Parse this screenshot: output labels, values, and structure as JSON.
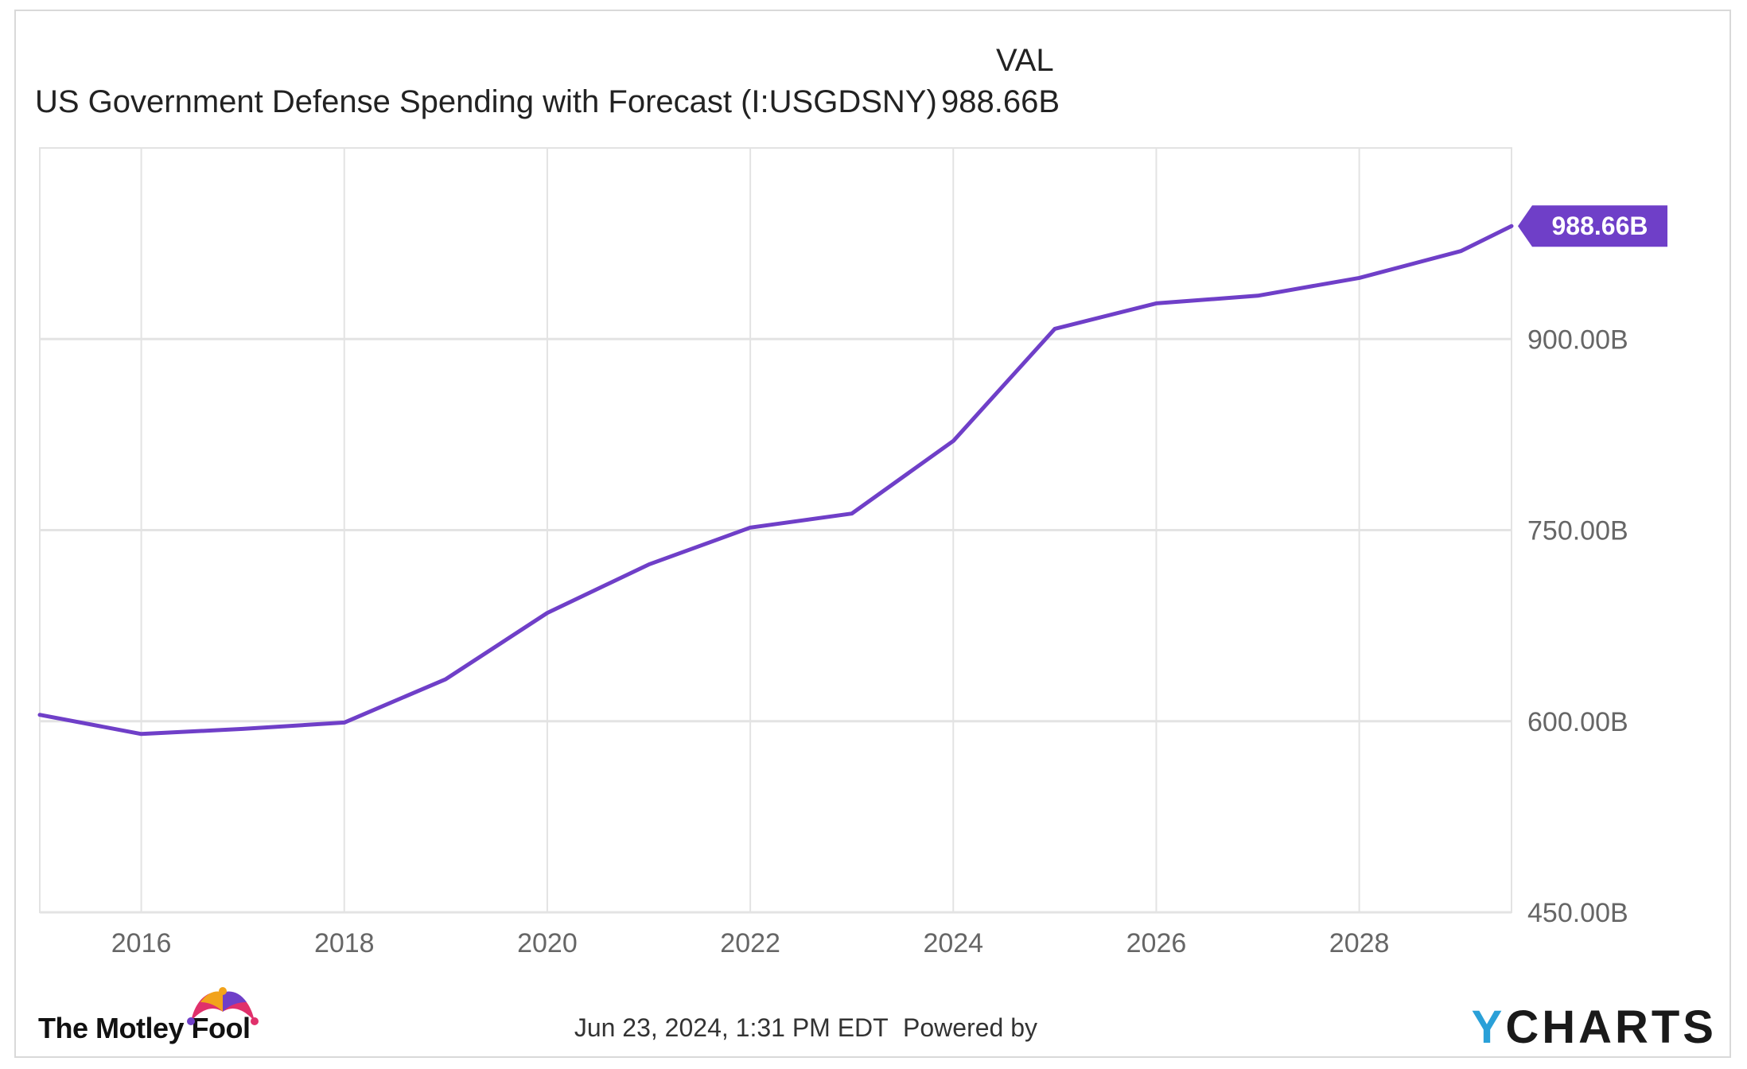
{
  "legend": {
    "header": "VAL",
    "series_name": "US Government Defense Spending with Forecast (I:USGDSNY)",
    "series_value": "988.66B"
  },
  "footer": {
    "timestamp": "Jun 23, 2024, 1:31 PM EDT",
    "powered_by": "Powered by",
    "ycharts_y": "Y",
    "ycharts_rest": "CHARTS",
    "brand": "The Motley Fool"
  },
  "colors": {
    "line": "#6f3fc8",
    "badge": "#6f3fc8",
    "grid": "#e3e3e3",
    "axis_text": "#666666",
    "ycharts_accent": "#2aa0d8",
    "ycharts_text": "#1a1a1a"
  },
  "icons": {
    "brand_logo": "jester-hat-icon"
  },
  "chart_data": {
    "type": "line",
    "title": "",
    "xlabel": "",
    "ylabel": "",
    "xlim": [
      2015,
      2029.5
    ],
    "ylim": [
      450,
      1050
    ],
    "x_ticks": [
      2016,
      2018,
      2020,
      2022,
      2024,
      2026,
      2028
    ],
    "x_tick_labels": [
      "2016",
      "2018",
      "2020",
      "2022",
      "2024",
      "2026",
      "2028"
    ],
    "y_ticks": [
      450,
      600,
      750,
      900
    ],
    "y_tick_labels": [
      "450.00B",
      "600.00B",
      "750.00B",
      "900.00B"
    ],
    "grid": true,
    "legend_position": "top-left",
    "series": [
      {
        "name": "US Government Defense Spending with Forecast (I:USGDSNY)",
        "x": [
          2015,
          2016,
          2017,
          2018,
          2019,
          2020,
          2021,
          2022,
          2023,
          2024,
          2025,
          2026,
          2027,
          2028,
          2029,
          2029.5
        ],
        "y": [
          605,
          590,
          594,
          599,
          633,
          685,
          723,
          752,
          763,
          820,
          908,
          928,
          934,
          948,
          969,
          988.66
        ]
      }
    ],
    "last_value_label": "988.66B"
  }
}
